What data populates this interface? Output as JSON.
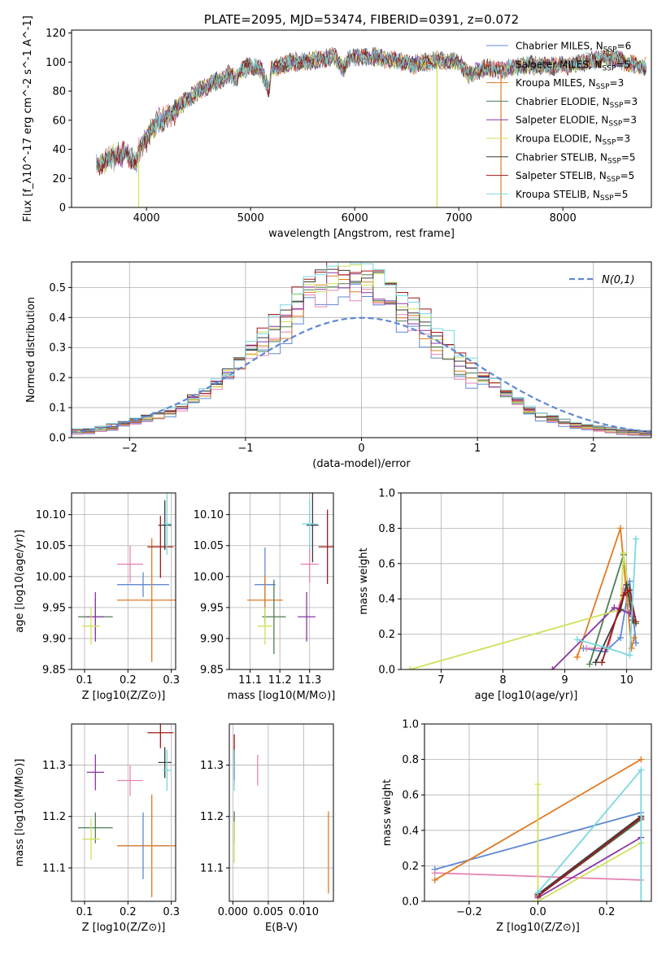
{
  "chart_data": [
    {
      "id": "spectrum",
      "type": "line",
      "title": "PLATE=2095, MJD=53474, FIBERID=0391, z=0.072",
      "xlabel": "wavelength [Angstrom, rest frame]",
      "ylabel": "Flux [f_λ10^-17 erg cm^-2 s^-1 A^-1]",
      "xlim": [
        3280,
        8850
      ],
      "ylim": [
        0,
        122
      ],
      "xticks": [
        4000,
        5000,
        6000,
        7000,
        8000
      ],
      "yticks": [
        0,
        20,
        40,
        60,
        80,
        100,
        120
      ],
      "legend": "top-right",
      "spectrum_profile": {
        "x": [
          3520,
          3600,
          3700,
          3800,
          3900,
          3920,
          4000,
          4100,
          4200,
          4300,
          4400,
          4500,
          4600,
          4700,
          4800,
          4860,
          4900,
          5000,
          5100,
          5180,
          5200,
          5300,
          5400,
          5500,
          5600,
          5700,
          5800,
          5890,
          5950,
          6000,
          6100,
          6200,
          6300,
          6400,
          6500,
          6563,
          6600,
          6700,
          6800,
          6900,
          7000,
          7100,
          7200,
          7300,
          7400,
          7500,
          7600,
          7700,
          7800,
          7900,
          8000,
          8100,
          8200,
          8300,
          8400,
          8500,
          8600,
          8700,
          8800
        ],
        "y": [
          28,
          32,
          35,
          38,
          30,
          38,
          48,
          58,
          62,
          68,
          75,
          80,
          84,
          88,
          92,
          88,
          94,
          98,
          95,
          80,
          95,
          98,
          100,
          100,
          101,
          102,
          104,
          96,
          103,
          104,
          103,
          104,
          102,
          101,
          100,
          98,
          99,
          100,
          101,
          101,
          100,
          91,
          95,
          96,
          94,
          96,
          97,
          98,
          97,
          97,
          98,
          98,
          100,
          101,
          103,
          103,
          100,
          98,
          97
        ]
      },
      "series": [
        {
          "name": "Chabrier MILES",
          "nssp": "6",
          "color": "#5f88d4"
        },
        {
          "name": "Salpeter MILES",
          "nssp": "5",
          "color": "#e684b4"
        },
        {
          "name": "Kroupa MILES",
          "nssp": "3",
          "color": "#e07a22"
        },
        {
          "name": "Chabrier ELODIE",
          "nssp": "3",
          "color": "#4d7d52"
        },
        {
          "name": "Salpeter ELODIE",
          "nssp": "3",
          "color": "#8a35a8"
        },
        {
          "name": "Kroupa ELODIE",
          "nssp": "3",
          "color": "#d0e05a"
        },
        {
          "name": "Chabrier STELIB",
          "nssp": "5",
          "color": "#3a3a3a"
        },
        {
          "name": "Salpeter STELIB",
          "nssp": "5",
          "color": "#a01818"
        },
        {
          "name": "Kroupa STELIB",
          "nssp": "5",
          "color": "#78d8e0"
        }
      ]
    },
    {
      "id": "residuals",
      "type": "histogram",
      "xlabel": "(data-model)/error",
      "ylabel": "Normed distribution",
      "xlim": [
        -2.5,
        2.5
      ],
      "ylim": [
        0,
        0.585
      ],
      "xticks": [
        -2,
        -1,
        0,
        1,
        2
      ],
      "yticks": [
        0.0,
        0.1,
        0.2,
        0.3,
        0.4,
        0.5
      ],
      "reference_label": "N(0,1)",
      "reference_color": "#5f88d4",
      "legend": "top-right",
      "bin_width": 0.1,
      "bin_starts": [
        -2.5,
        -2.4,
        -2.3,
        -2.2,
        -2.1,
        -2.0,
        -1.9,
        -1.8,
        -1.7,
        -1.6,
        -1.5,
        -1.4,
        -1.3,
        -1.2,
        -1.1,
        -1.0,
        -0.9,
        -0.8,
        -0.7,
        -0.6,
        -0.5,
        -0.4,
        -0.3,
        -0.2,
        -0.1,
        0.0,
        0.1,
        0.2,
        0.3,
        0.4,
        0.5,
        0.6,
        0.7,
        0.8,
        0.9,
        1.0,
        1.1,
        1.2,
        1.3,
        1.4,
        1.5,
        1.6,
        1.7,
        1.8,
        1.9,
        2.0,
        2.1,
        2.2,
        2.3,
        2.4
      ],
      "base_profile": [
        0.02,
        0.022,
        0.028,
        0.035,
        0.045,
        0.055,
        0.065,
        0.075,
        0.085,
        0.1,
        0.13,
        0.15,
        0.18,
        0.21,
        0.25,
        0.29,
        0.32,
        0.35,
        0.38,
        0.44,
        0.48,
        0.5,
        0.53,
        0.54,
        0.53,
        0.52,
        0.5,
        0.47,
        0.43,
        0.4,
        0.37,
        0.33,
        0.29,
        0.24,
        0.22,
        0.2,
        0.18,
        0.15,
        0.12,
        0.09,
        0.07,
        0.06,
        0.05,
        0.04,
        0.035,
        0.03,
        0.025,
        0.02,
        0.018,
        0.015
      ]
    },
    {
      "id": "age-vs-Z",
      "type": "scatter",
      "xlabel": "Z [log10(Z/Z⊙)]",
      "ylabel": "age [log10(age/yr)]",
      "xlim": [
        0.07,
        0.31
      ],
      "ylim": [
        9.85,
        10.135
      ],
      "xticks": [
        0.1,
        0.2,
        0.3
      ],
      "yticks": [
        9.85,
        9.9,
        9.95,
        10.0,
        10.05,
        10.1
      ],
      "points": [
        {
          "x": 0.235,
          "y": 9.987,
          "xe": 0.06,
          "ye": 0.02,
          "color": "#5f88d4"
        },
        {
          "x": 0.205,
          "y": 10.02,
          "xe": 0.03,
          "ye": 0.03,
          "color": "#e684b4"
        },
        {
          "x": 0.255,
          "y": 9.962,
          "xe": 0.08,
          "ye": 0.1,
          "color": "#e07a22"
        },
        {
          "x": 0.125,
          "y": 9.935,
          "xe": 0.04,
          "ye": 0.03,
          "color": "#4d7d52"
        },
        {
          "x": 0.125,
          "y": 9.935,
          "xe": 0.02,
          "ye": 0.04,
          "color": "#8a35a8"
        },
        {
          "x": 0.115,
          "y": 9.92,
          "xe": 0.02,
          "ye": 0.03,
          "color": "#d0e05a"
        },
        {
          "x": 0.285,
          "y": 10.083,
          "xe": 0.015,
          "ye": 0.04,
          "color": "#3a3a3a"
        },
        {
          "x": 0.275,
          "y": 10.048,
          "xe": 0.03,
          "ye": 0.05,
          "color": "#a01818"
        },
        {
          "x": 0.29,
          "y": 10.085,
          "xe": 0.01,
          "ye": 0.05,
          "color": "#78d8e0"
        }
      ]
    },
    {
      "id": "age-vs-mass",
      "type": "scatter",
      "xlabel": "mass [log10(M/M⊙)]",
      "ylabel": "",
      "xlim": [
        11.03,
        11.38
      ],
      "ylim": [
        9.85,
        10.135
      ],
      "xticks": [
        11.1,
        11.2,
        11.3
      ],
      "yticks": [
        9.85,
        9.9,
        9.95,
        10.0,
        10.05,
        10.1
      ],
      "points": [
        {
          "x": 11.15,
          "y": 9.987,
          "xe": 0.035,
          "ye": 0.06,
          "color": "#5f88d4"
        },
        {
          "x": 11.3,
          "y": 10.02,
          "xe": 0.03,
          "ye": 0.03,
          "color": "#e684b4"
        },
        {
          "x": 11.15,
          "y": 9.962,
          "xe": 0.06,
          "ye": 0.04,
          "color": "#e07a22"
        },
        {
          "x": 11.18,
          "y": 9.935,
          "xe": 0.04,
          "ye": 0.06,
          "color": "#4d7d52"
        },
        {
          "x": 11.29,
          "y": 9.935,
          "xe": 0.03,
          "ye": 0.04,
          "color": "#8a35a8"
        },
        {
          "x": 11.15,
          "y": 9.92,
          "xe": 0.025,
          "ye": 0.03,
          "color": "#d0e05a"
        },
        {
          "x": 11.31,
          "y": 10.083,
          "xe": 0.02,
          "ye": 0.06,
          "color": "#3a3a3a"
        },
        {
          "x": 11.36,
          "y": 10.048,
          "xe": 0.03,
          "ye": 0.06,
          "color": "#a01818"
        },
        {
          "x": 11.3,
          "y": 10.085,
          "xe": 0.025,
          "ye": 0.04,
          "color": "#78d8e0"
        }
      ]
    },
    {
      "id": "weight-vs-age",
      "type": "line",
      "xlabel": "age [log10(age/yr)]",
      "ylabel": "mass weight",
      "xlim": [
        6.35,
        10.4
      ],
      "ylim": [
        0,
        1.0
      ],
      "xticks": [
        7,
        8,
        9,
        10
      ],
      "yticks": [
        0.0,
        0.2,
        0.4,
        0.6,
        0.8,
        1.0
      ],
      "series": [
        {
          "color": "#5f88d4",
          "x": [
            9.3,
            9.65,
            9.9,
            10.05,
            10.15
          ],
          "y": [
            0.12,
            0.1,
            0.18,
            0.5,
            0.15
          ]
        },
        {
          "color": "#e684b4",
          "x": [
            9.35,
            9.7,
            9.95,
            10.1
          ],
          "y": [
            0.12,
            0.12,
            0.46,
            0.3
          ]
        },
        {
          "color": "#e07a22",
          "x": [
            9.2,
            9.9,
            10.08,
            10.12
          ],
          "y": [
            0.07,
            0.8,
            0.12,
            0.18
          ]
        },
        {
          "color": "#4d7d52",
          "x": [
            9.4,
            9.95,
            10.1,
            10.15
          ],
          "y": [
            0.03,
            0.65,
            0.28,
            0.26
          ]
        },
        {
          "color": "#8a35a8",
          "x": [
            8.8,
            9.8,
            10.05,
            10.1
          ],
          "y": [
            0.0,
            0.35,
            0.32,
            0.3
          ]
        },
        {
          "color": "#d0e05a",
          "x": [
            6.5,
            9.9,
            9.95,
            10.05
          ],
          "y": [
            0.0,
            0.34,
            0.66,
            0.38
          ]
        },
        {
          "color": "#3a3a3a",
          "x": [
            9.5,
            9.9,
            10.0,
            10.1
          ],
          "y": [
            0.04,
            0.34,
            0.48,
            0.28
          ]
        },
        {
          "color": "#a01818",
          "x": [
            9.6,
            9.95,
            10.05,
            10.15
          ],
          "y": [
            0.04,
            0.42,
            0.45,
            0.27
          ]
        },
        {
          "color": "#78d8e0",
          "x": [
            9.2,
            9.7,
            10.05,
            10.15
          ],
          "y": [
            0.17,
            0.12,
            0.08,
            0.74
          ]
        }
      ]
    },
    {
      "id": "mass-vs-Z",
      "type": "scatter",
      "xlabel": "Z [log10(Z/Z⊙)]",
      "ylabel": "mass [log10(M/M⊙)]",
      "xlim": [
        0.07,
        0.31
      ],
      "ylim": [
        11.035,
        11.38
      ],
      "xticks": [
        0.1,
        0.2,
        0.3
      ],
      "yticks": [
        11.1,
        11.2,
        11.3
      ],
      "points": [
        {
          "x": 0.235,
          "y": 11.143,
          "xe": 0.06,
          "ye": 0.065,
          "color": "#5f88d4"
        },
        {
          "x": 0.205,
          "y": 11.27,
          "xe": 0.03,
          "ye": 0.03,
          "color": "#e684b4"
        },
        {
          "x": 0.255,
          "y": 11.143,
          "xe": 0.08,
          "ye": 0.1,
          "color": "#e07a22"
        },
        {
          "x": 0.125,
          "y": 11.178,
          "xe": 0.04,
          "ye": 0.03,
          "color": "#4d7d52"
        },
        {
          "x": 0.125,
          "y": 11.286,
          "xe": 0.02,
          "ye": 0.035,
          "color": "#8a35a8"
        },
        {
          "x": 0.115,
          "y": 11.156,
          "xe": 0.02,
          "ye": 0.04,
          "color": "#d0e05a"
        },
        {
          "x": 0.285,
          "y": 11.305,
          "xe": 0.015,
          "ye": 0.03,
          "color": "#3a3a3a"
        },
        {
          "x": 0.275,
          "y": 11.363,
          "xe": 0.03,
          "ye": 0.03,
          "color": "#a01818"
        },
        {
          "x": 0.29,
          "y": 11.29,
          "xe": 0.01,
          "ye": 0.04,
          "color": "#78d8e0"
        }
      ]
    },
    {
      "id": "mass-vs-ebv",
      "type": "scatter",
      "xlabel": "E(B-V)",
      "ylabel": "",
      "xlim": [
        -0.0005,
        0.0142
      ],
      "ylim": [
        11.035,
        11.38
      ],
      "xticks": [
        0.0,
        0.005,
        0.01
      ],
      "yticks": [
        11.1,
        11.2,
        11.3
      ],
      "points": [
        {
          "x": 0.0002,
          "y": 11.3,
          "xe": 0.0,
          "ye": 0.03,
          "color": "#5f88d4"
        },
        {
          "x": 0.0035,
          "y": 11.29,
          "xe": 0.0,
          "ye": 0.03,
          "color": "#e684b4"
        },
        {
          "x": 0.0135,
          "y": 11.13,
          "xe": 0.0,
          "ye": 0.08,
          "color": "#e07a22"
        },
        {
          "x": 0.0002,
          "y": 11.18,
          "xe": 0.0,
          "ye": 0.03,
          "color": "#4d7d52"
        },
        {
          "x": 0.0002,
          "y": 11.3,
          "xe": 0.0,
          "ye": 0.03,
          "color": "#8a35a8"
        },
        {
          "x": 0.0002,
          "y": 11.15,
          "xe": 0.0,
          "ye": 0.04,
          "color": "#d0e05a"
        },
        {
          "x": 0.0002,
          "y": 11.3,
          "xe": 0.0,
          "ye": 0.03,
          "color": "#3a3a3a"
        },
        {
          "x": 0.0002,
          "y": 11.33,
          "xe": 0.0,
          "ye": 0.03,
          "color": "#a01818"
        },
        {
          "x": 0.0002,
          "y": 11.29,
          "xe": 0.0,
          "ye": 0.04,
          "color": "#78d8e0"
        }
      ]
    },
    {
      "id": "weight-vs-Z",
      "type": "line",
      "xlabel": "Z [log10(Z/Z⊙)]",
      "ylabel": "mass weight",
      "xlim": [
        -0.33,
        0.33
      ],
      "ylim": [
        0,
        1.0
      ],
      "xticks": [
        -0.2,
        0.0,
        0.2
      ],
      "yticks": [
        0.0,
        0.2,
        0.4,
        0.6,
        0.8,
        1.0
      ],
      "series": [
        {
          "color": "#5f88d4",
          "x": [
            -0.3,
            0.3
          ],
          "y": [
            0.18,
            0.5
          ]
        },
        {
          "color": "#e684b4",
          "x": [
            -0.3,
            0.3
          ],
          "y": [
            0.16,
            0.12
          ]
        },
        {
          "color": "#e07a22",
          "x": [
            -0.3,
            0.3
          ],
          "y": [
            0.12,
            0.8
          ]
        },
        {
          "color": "#4d7d52",
          "x": [
            0.0,
            0.3
          ],
          "y": [
            0.03,
            0.46
          ]
        },
        {
          "color": "#8a35a8",
          "x": [
            0.0,
            0.3
          ],
          "y": [
            0.02,
            0.36
          ]
        },
        {
          "color": "#d0e05a",
          "x": [
            0.0,
            0.0,
            0.3
          ],
          "y": [
            0.66,
            0.0,
            0.33
          ]
        },
        {
          "color": "#3a3a3a",
          "x": [
            0.0,
            0.3
          ],
          "y": [
            0.04,
            0.48
          ]
        },
        {
          "color": "#a01818",
          "x": [
            0.0,
            0.3
          ],
          "y": [
            0.03,
            0.47
          ]
        },
        {
          "color": "#78d8e0",
          "x": [
            0.0,
            0.3,
            0.3
          ],
          "y": [
            0.05,
            0.74,
            0.0
          ]
        }
      ]
    }
  ]
}
